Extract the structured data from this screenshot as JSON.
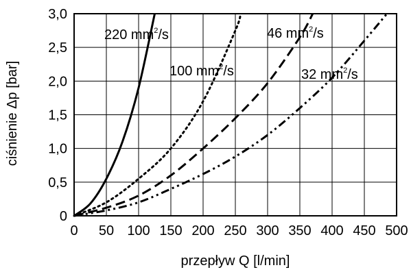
{
  "chart_data": {
    "type": "line",
    "xlabel": "przepływ Q [l/min]",
    "ylabel": "ciśnienie Δp [bar]",
    "xlim": [
      0,
      500
    ],
    "ylim": [
      0,
      3.0
    ],
    "x_ticks": [
      "0",
      "50",
      "100",
      "150",
      "200",
      "250",
      "300",
      "350",
      "400",
      "450",
      "500"
    ],
    "y_ticks": [
      "0",
      "0,5",
      "1,0",
      "1,5",
      "2,0",
      "2,5",
      "3,0"
    ],
    "grid": true,
    "series": [
      {
        "name": "220 mm²/s",
        "label_main": "220 mm",
        "label_sup": "2",
        "label_tail": "/s",
        "style": "solid",
        "x": [
          0,
          25,
          50,
          75,
          100,
          125
        ],
        "y": [
          0,
          0.18,
          0.55,
          1.1,
          1.9,
          3.0
        ]
      },
      {
        "name": "100 mm²/s",
        "label_main": "100 mm",
        "label_sup": "2",
        "label_tail": "/s",
        "style": "dotted",
        "x": [
          0,
          50,
          100,
          150,
          200,
          250,
          258
        ],
        "y": [
          0,
          0.2,
          0.55,
          1.0,
          1.7,
          2.75,
          3.0
        ]
      },
      {
        "name": "46 mm²/s",
        "label_main": "46 mm",
        "label_sup": "2",
        "label_tail": "/s",
        "style": "dashed",
        "x": [
          0,
          50,
          100,
          150,
          200,
          250,
          300,
          350,
          370
        ],
        "y": [
          0,
          0.12,
          0.3,
          0.6,
          1.0,
          1.45,
          1.97,
          2.65,
          3.0
        ]
      },
      {
        "name": "32 mm²/s",
        "label_main": "32 mm",
        "label_sup": "2",
        "label_tail": "/s",
        "style": "dashdot",
        "x": [
          0,
          50,
          100,
          150,
          200,
          250,
          300,
          350,
          400,
          450,
          485
        ],
        "y": [
          0,
          0.08,
          0.2,
          0.4,
          0.62,
          0.88,
          1.2,
          1.6,
          2.05,
          2.6,
          3.0
        ]
      }
    ]
  }
}
